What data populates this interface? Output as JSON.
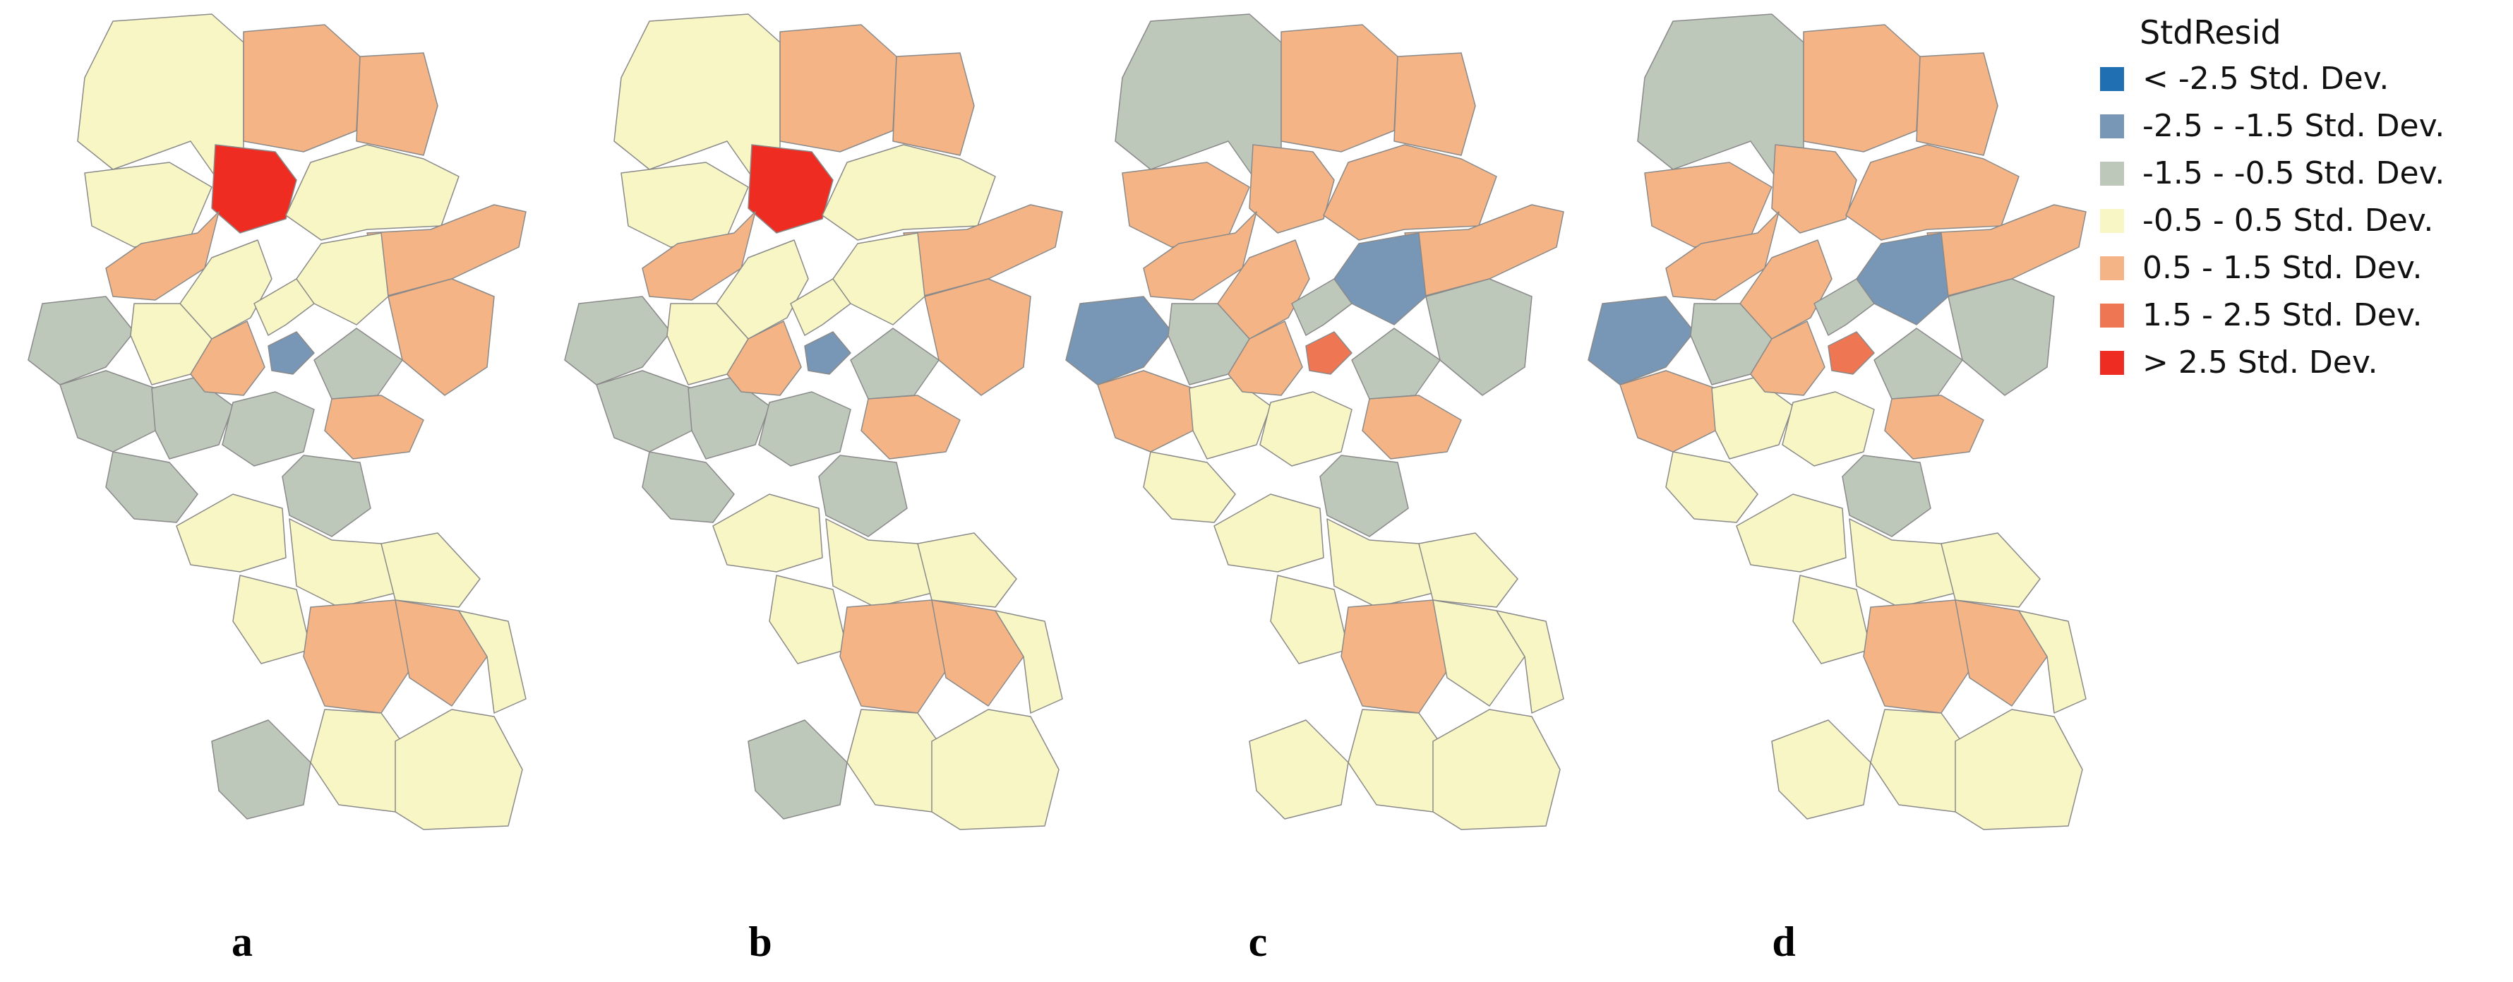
{
  "legend": {
    "title": "StdResid",
    "classes": [
      {
        "label": "< -2.5 Std. Dev.",
        "color": "#1f6fb2"
      },
      {
        "label": "-2.5 - -1.5 Std. Dev.",
        "color": "#7896b5"
      },
      {
        "label": "-1.5 - -0.5 Std. Dev.",
        "color": "#bdc8bb"
      },
      {
        "label": "-0.5 - 0.5 Std. Dev.",
        "color": "#f8f6c4"
      },
      {
        "label": "0.5 - 1.5 Std. Dev.",
        "color": "#f4b485"
      },
      {
        "label": "1.5 - 2.5 Std. Dev.",
        "color": "#ee7653"
      },
      {
        "label": "> 2.5 Std. Dev.",
        "color": "#ef2c22"
      }
    ]
  },
  "panels": [
    {
      "caption": "a",
      "classes": [
        3,
        4,
        4,
        3,
        6,
        3,
        4,
        4,
        3,
        2,
        2,
        3,
        2,
        4,
        3,
        1,
        3,
        4,
        2,
        4,
        2,
        2,
        2,
        3,
        3,
        3,
        3,
        4,
        4,
        3,
        3,
        2,
        3
      ]
    },
    {
      "caption": "b",
      "classes": [
        3,
        4,
        4,
        3,
        6,
        3,
        4,
        4,
        3,
        2,
        2,
        3,
        2,
        4,
        3,
        1,
        3,
        4,
        2,
        4,
        2,
        2,
        2,
        3,
        3,
        3,
        3,
        4,
        4,
        3,
        3,
        2,
        3
      ]
    },
    {
      "caption": "c",
      "classes": [
        2,
        4,
        4,
        4,
        4,
        4,
        4,
        4,
        4,
        1,
        4,
        2,
        3,
        4,
        2,
        5,
        1,
        2,
        2,
        4,
        3,
        2,
        3,
        3,
        3,
        3,
        3,
        4,
        3,
        3,
        3,
        3,
        3
      ]
    },
    {
      "caption": "d",
      "classes": [
        2,
        4,
        4,
        4,
        4,
        4,
        4,
        4,
        4,
        1,
        4,
        2,
        3,
        4,
        2,
        5,
        1,
        2,
        2,
        4,
        3,
        2,
        3,
        3,
        3,
        3,
        3,
        4,
        4,
        3,
        3,
        3,
        3
      ]
    }
  ]
}
